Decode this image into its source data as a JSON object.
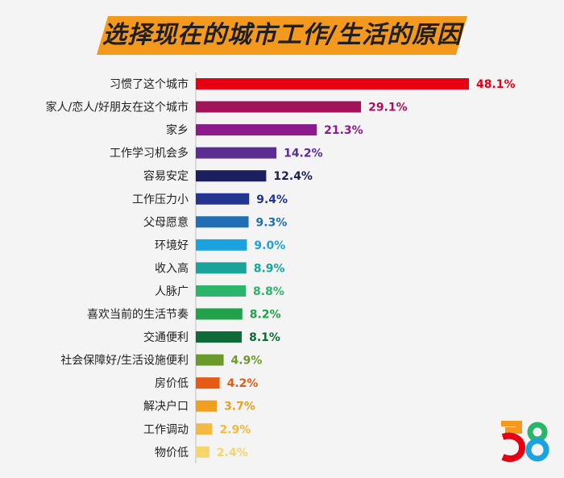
{
  "chart_data": {
    "type": "bar",
    "orientation": "horizontal",
    "title": "选择现在的城市工作/生活的原因",
    "categories": [
      "习惯了这个城市",
      "家人/恋人/好朋友在这个城市",
      "家乡",
      "工作学习机会多",
      "容易安定",
      "工作压力小",
      "父母愿意",
      "环境好",
      "收入高",
      "人脉广",
      "喜欢当前的生活节奏",
      "交通便利",
      "社会保障好/生活设施便利",
      "房价低",
      "解决户口",
      "工作调动",
      "物价低"
    ],
    "values": [
      48.1,
      29.1,
      21.3,
      14.2,
      12.4,
      9.4,
      9.3,
      9.0,
      8.9,
      8.8,
      8.2,
      8.1,
      4.9,
      4.2,
      3.7,
      2.9,
      2.4
    ],
    "value_labels": [
      "48.1%",
      "29.1%",
      "21.3%",
      "14.2%",
      "12.4%",
      "9.4%",
      "9.3%",
      "9.0%",
      "8.9%",
      "8.8%",
      "8.2%",
      "8.1%",
      "4.9%",
      "4.2%",
      "3.7%",
      "2.9%",
      "2.4%"
    ],
    "colors": [
      "#e60012",
      "#a2145a",
      "#8c1a8c",
      "#5c2d91",
      "#1b1f5e",
      "#233591",
      "#1f6fb5",
      "#1aa3e0",
      "#1aa39a",
      "#2bb56a",
      "#22a04a",
      "#0e6b35",
      "#6b9a2a",
      "#e65a14",
      "#f0a01e",
      "#f5b942",
      "#f7d56a"
    ],
    "xlabel": "",
    "ylabel": ""
  },
  "title_banner_color": "#f39a1e",
  "logo": {
    "text": "58",
    "colors": [
      "#f39a1e",
      "#e60012",
      "#1aa3e0",
      "#2bb56a"
    ]
  }
}
